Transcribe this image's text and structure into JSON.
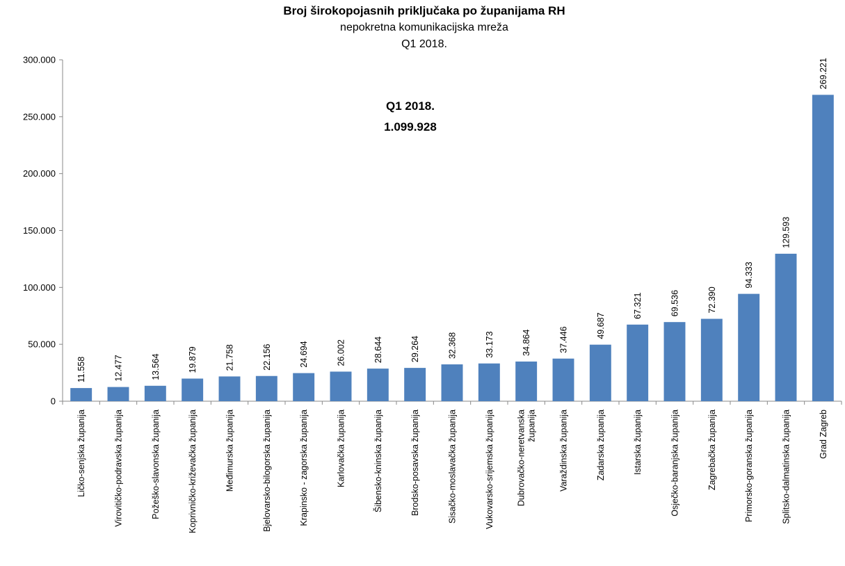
{
  "chart_data": {
    "type": "bar",
    "title": "Broj širokopojasnih priključaka po županijama RH",
    "subtitle": "nepokretna komunikacijska mreža",
    "period": "Q1 2018.",
    "annotation": {
      "line1": "Q1 2018.",
      "line2": "1.099.928"
    },
    "categories": [
      [
        "Ličko-senjska županija"
      ],
      [
        "Virovitičko-podravska županija"
      ],
      [
        "Požeško-slavonska županija"
      ],
      [
        "Koprivničko-križevačka županija"
      ],
      [
        "Međimurska županija"
      ],
      [
        "Bjelovarsko-bilogorska županija"
      ],
      [
        "Krapinsko - zagorska županija"
      ],
      [
        "Karlovačka županija"
      ],
      [
        "Šibensko-kninska županija"
      ],
      [
        "Brodsko-posavska županija"
      ],
      [
        "Sisačko-moslavačka županija"
      ],
      [
        "Vukovarsko-srijemska županija"
      ],
      [
        "Dubrovačko-neretvanska",
        "županija"
      ],
      [
        "Varaždinska županija"
      ],
      [
        "Zadarska županija"
      ],
      [
        "Istarska županija"
      ],
      [
        "Osječko-baranjska županija"
      ],
      [
        "Zagrebačka županija"
      ],
      [
        "Primorsko-goranska županija"
      ],
      [
        "Splitsko-dalmatinska županija"
      ],
      [
        "Grad Zagreb"
      ]
    ],
    "values": [
      11558,
      12477,
      13564,
      19879,
      21758,
      22156,
      24694,
      26002,
      28644,
      29264,
      32368,
      33173,
      34864,
      37446,
      49687,
      67321,
      69536,
      72390,
      94333,
      129593,
      269221
    ],
    "value_labels": [
      "11.558",
      "12.477",
      "13.564",
      "19.879",
      "21.758",
      "22.156",
      "24.694",
      "26.002",
      "28.644",
      "29.264",
      "32.368",
      "33.173",
      "34.864",
      "37.446",
      "49.687",
      "67.321",
      "69.536",
      "72.390",
      "94.333",
      "129.593",
      "269.221"
    ],
    "yticks": [
      0,
      50000,
      100000,
      150000,
      200000,
      250000,
      300000
    ],
    "ytick_labels": [
      "0",
      "50.000",
      "100.000",
      "150.000",
      "200.000",
      "250.000",
      "300.000"
    ],
    "ylim": [
      0,
      300000
    ],
    "xlabel": "",
    "ylabel": "",
    "grid": false,
    "legend": "none",
    "bar_color": "#4f81bd"
  }
}
